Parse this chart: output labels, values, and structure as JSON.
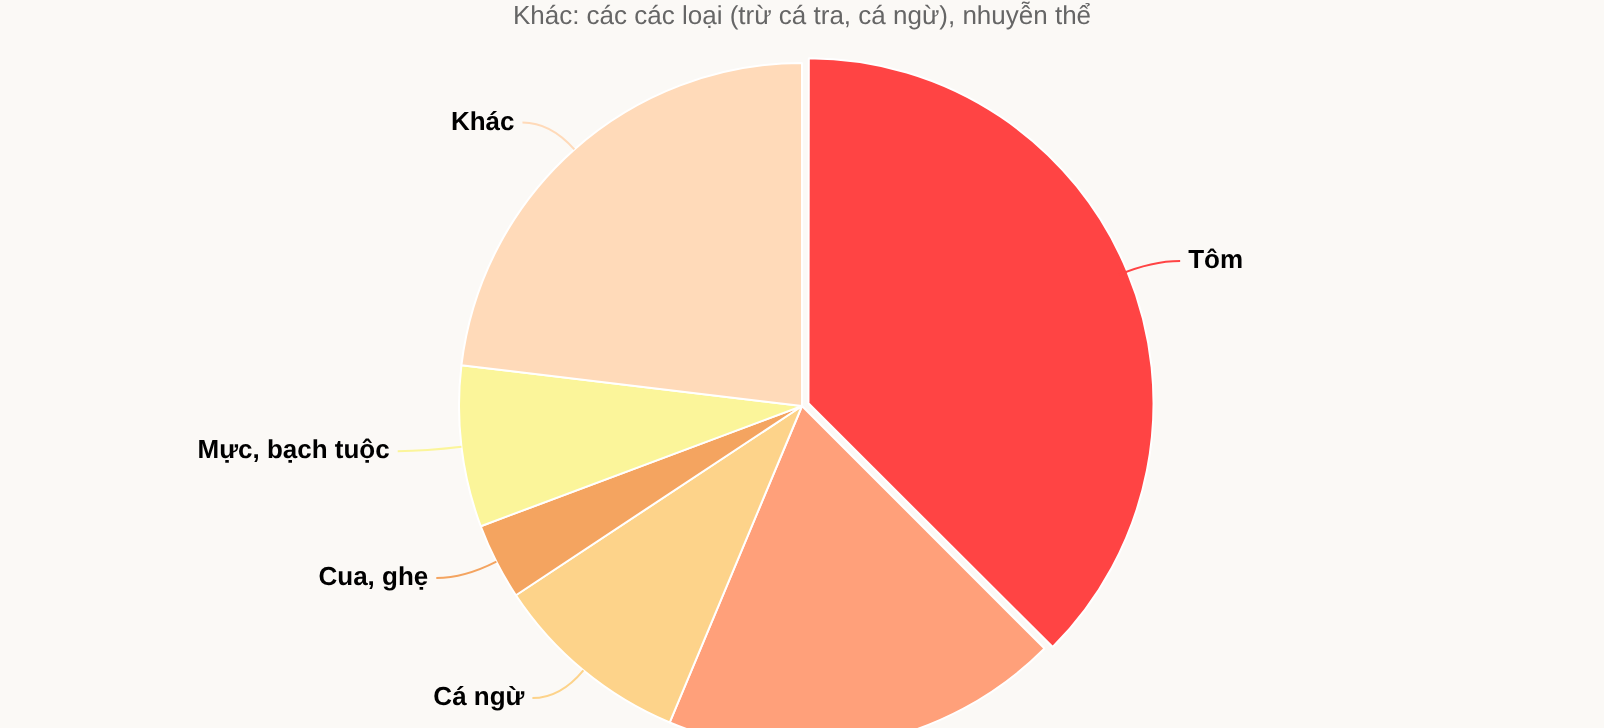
{
  "chart_data": {
    "type": "pie",
    "subtitle": "Khác: các các loại (trừ cá tra, cá ngừ), nhuyễn thể",
    "categories": [
      "Tôm",
      null,
      "Cá ngừ",
      "Cua, ghẹ",
      "Mực, bạch tuộc",
      "Khác"
    ],
    "values": [
      37.5,
      18.8,
      9.4,
      3.6,
      7.6,
      23.1
    ],
    "colors": [
      "#ff4444",
      "#ffa07a",
      "#fdd38a",
      "#f4a460",
      "#fbf59a",
      "#ffdab9"
    ]
  }
}
